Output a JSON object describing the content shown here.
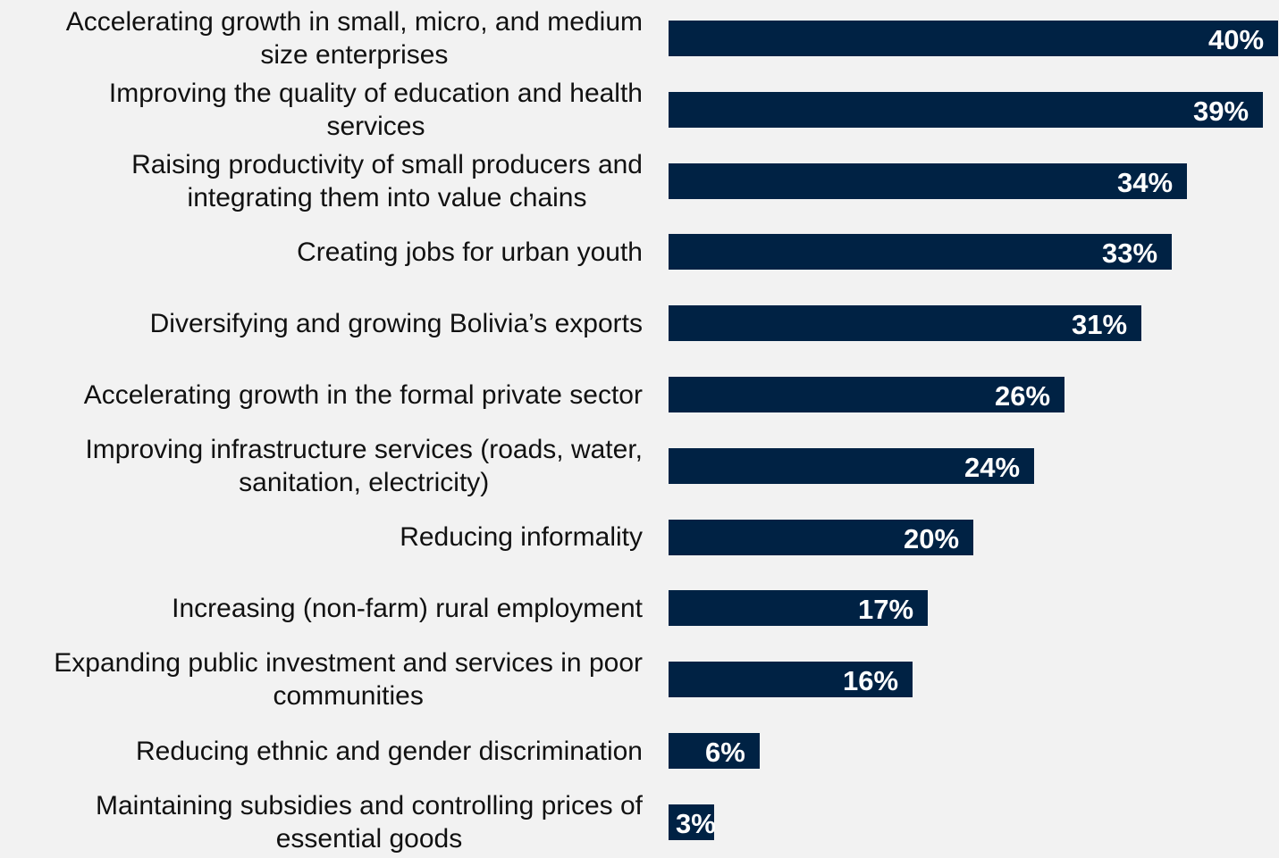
{
  "chart_data": {
    "type": "bar",
    "orientation": "horizontal",
    "categories": [
      "Accelerating growth in small, micro, and medium size enterprises",
      "Improving the quality of education and health services",
      "Raising productivity of small producers and integrating them into value chains",
      "Creating jobs for urban youth",
      "Diversifying and growing Bolivia’s exports",
      "Accelerating growth in the formal private sector",
      "Improving infrastructure services (roads, water, sanitation, electricity)",
      "Reducing informality",
      "Increasing (non-farm) rural employment",
      "Expanding public investment and services in poor communities",
      "Reducing ethnic and gender discrimination",
      "Maintaining subsidies and controlling prices of essential goods"
    ],
    "values": [
      40,
      39,
      34,
      33,
      31,
      26,
      24,
      20,
      17,
      16,
      6,
      3
    ],
    "value_labels": [
      "40%",
      "39%",
      "34%",
      "33%",
      "31%",
      "26%",
      "24%",
      "20%",
      "17%",
      "16%",
      "6%",
      "3%"
    ],
    "title": "",
    "xlabel": "",
    "ylabel": "",
    "xlim": [
      0,
      40
    ],
    "grid": false,
    "legend": "none",
    "bar_color": "#002244",
    "label_color": "#ffffff",
    "background": "#f2f2f2"
  }
}
